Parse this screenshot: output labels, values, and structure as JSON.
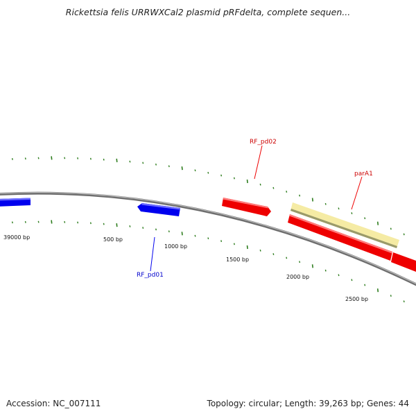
{
  "title": "Rickettsia felis URRWXCal2 plasmid pRFdelta, complete sequen...",
  "footer": {
    "accession": "Accession: NC_007111",
    "summary": "Topology: circular; Length: 39,263 bp; Genes: 44"
  },
  "scale_labels": [
    "39000 bp",
    "500 bp",
    "1000 bp",
    "1500 bp",
    "2000 bp",
    "2500 bp"
  ],
  "genes": [
    {
      "id": "left-blue",
      "label": "",
      "color": "#0000ee",
      "strand": "forward"
    },
    {
      "id": "RF_pd01",
      "label": "RF_pd01",
      "color": "#0000ee",
      "strand": "reverse"
    },
    {
      "id": "RF_pd02",
      "label": "RF_pd02",
      "color": "#ee0000",
      "strand": "forward"
    },
    {
      "id": "parA1",
      "label": "parA1",
      "color": "#f5eba4",
      "strand": "forward"
    },
    {
      "id": "red-lower",
      "label": "",
      "color": "#ee0000",
      "strand": "forward"
    }
  ],
  "colors": {
    "backbone": "#8c8c8c",
    "tick": "#2e7d1e",
    "forward_gene": "#ee0000",
    "reverse_gene": "#0000ee",
    "rna_gene": "#f5eba4"
  }
}
